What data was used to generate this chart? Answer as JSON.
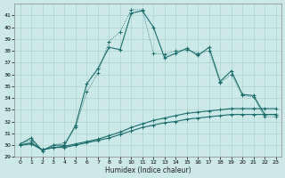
{
  "xlabel": "Humidex (Indice chaleur)",
  "background_color": "#cce8e8",
  "grid_color": "#b0d0d0",
  "line_color": "#1a6b6b",
  "xlim": [
    -0.5,
    23.5
  ],
  "ylim": [
    29,
    42
  ],
  "yticks": [
    29,
    30,
    31,
    32,
    33,
    34,
    35,
    36,
    37,
    38,
    39,
    40,
    41
  ],
  "xticks": [
    0,
    1,
    2,
    3,
    4,
    5,
    6,
    7,
    8,
    9,
    10,
    11,
    12,
    13,
    14,
    15,
    16,
    17,
    18,
    19,
    20,
    21,
    22,
    23
  ],
  "series1_x": [
    0,
    1,
    2,
    3,
    4,
    5,
    6,
    7,
    8,
    9,
    10,
    11,
    12,
    13,
    14,
    15,
    16,
    17,
    18,
    19,
    20,
    21,
    22,
    23
  ],
  "series1_y": [
    30.1,
    30.6,
    29.5,
    30.0,
    30.0,
    31.7,
    35.2,
    36.5,
    38.3,
    38.1,
    41.2,
    41.4,
    40.0,
    37.4,
    37.8,
    38.2,
    37.6,
    38.3,
    35.4,
    36.3,
    34.3,
    34.2,
    32.6,
    32.6
  ],
  "series2_x": [
    0,
    1,
    2,
    3,
    4,
    5,
    6,
    7,
    8,
    9,
    10,
    11,
    12,
    13,
    14,
    15,
    16,
    17,
    18,
    19,
    20,
    21,
    22,
    23
  ],
  "series2_y": [
    30.1,
    30.4,
    29.6,
    30.0,
    30.2,
    31.5,
    34.5,
    36.1,
    38.8,
    39.6,
    41.5,
    41.5,
    37.8,
    37.7,
    38.0,
    38.1,
    37.8,
    38.0,
    35.3,
    36.0,
    34.2,
    34.1,
    32.4,
    32.4
  ],
  "series3_x": [
    0,
    1,
    2,
    3,
    4,
    5,
    6,
    7,
    8,
    9,
    10,
    11,
    12,
    13,
    14,
    15,
    16,
    17,
    18,
    19,
    20,
    21,
    22,
    23
  ],
  "series3_y": [
    30.0,
    30.2,
    29.6,
    29.8,
    29.9,
    30.1,
    30.3,
    30.5,
    30.8,
    31.1,
    31.5,
    31.8,
    32.1,
    32.3,
    32.5,
    32.7,
    32.8,
    32.9,
    33.0,
    33.1,
    33.1,
    33.1,
    33.1,
    33.1
  ],
  "series4_x": [
    0,
    1,
    2,
    3,
    4,
    5,
    6,
    7,
    8,
    9,
    10,
    11,
    12,
    13,
    14,
    15,
    16,
    17,
    18,
    19,
    20,
    21,
    22,
    23
  ],
  "series4_y": [
    30.0,
    30.1,
    29.6,
    29.8,
    29.8,
    30.0,
    30.2,
    30.4,
    30.6,
    30.9,
    31.2,
    31.5,
    31.7,
    31.9,
    32.0,
    32.2,
    32.3,
    32.4,
    32.5,
    32.6,
    32.6,
    32.6,
    32.6,
    32.6
  ]
}
